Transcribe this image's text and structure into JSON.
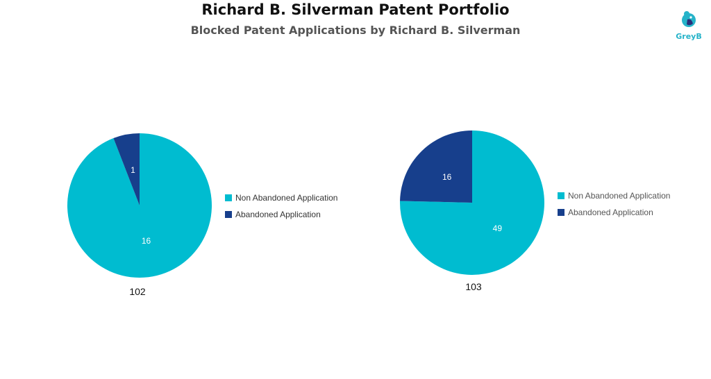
{
  "header": {
    "title": "Richard B. Silverman Patent Portfolio",
    "subtitle": "Blocked Patent Applications by Richard B. Silverman"
  },
  "logo": {
    "text": "GreyB",
    "color": "#26b3c9"
  },
  "colors": {
    "non_abandoned": "#00bcd0",
    "abandoned": "#173f8c"
  },
  "chart_data": [
    {
      "type": "pie",
      "label": "102",
      "slices": [
        {
          "name": "Non Abandoned Application",
          "value": 16
        },
        {
          "name": "Abandoned Application",
          "value": 1
        }
      ],
      "legend": [
        "Non Abandoned Application",
        "Abandoned Application"
      ],
      "legend_position": "right"
    },
    {
      "type": "pie",
      "label": "103",
      "slices": [
        {
          "name": "Non Abandoned Application",
          "value": 49
        },
        {
          "name": "Abandoned Application",
          "value": 16
        }
      ],
      "legend": [
        "Non Abandoned Application",
        "Abandoned Application"
      ],
      "legend_position": "right"
    }
  ]
}
